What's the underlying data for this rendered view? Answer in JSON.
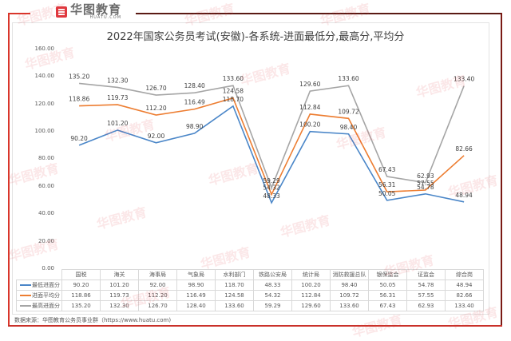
{
  "logo": {
    "cn": "华图教育",
    "en": "HUATU.COM"
  },
  "title": "2022年国家公务员考试(安徽)-各系统-进面最低分,最高分,平均分",
  "source": "数据来源：华图教育公务员事业群（https://www.huatu.com)",
  "watermark": "华图教育",
  "colors": {
    "min": "#4a86c8",
    "avg": "#ed7d31",
    "max": "#a5a5a5",
    "frame": "#d9362b"
  },
  "chart_data": {
    "type": "line",
    "title": "2022年国家公务员考试(安徽)-各系统-进面最低分,最高分,平均分",
    "xlabel": "",
    "ylabel": "",
    "ylim": [
      0,
      160
    ],
    "yticks": [
      "0.00",
      "20.00",
      "40.00",
      "60.00",
      "80.00",
      "100.00",
      "120.00",
      "140.00",
      "160.00"
    ],
    "grid": false,
    "legend_position": "data-table",
    "categories": [
      "国税",
      "海关",
      "海事局",
      "气象局",
      "水利部门",
      "铁路公安局",
      "统计局",
      "消防救援总队",
      "银保监会",
      "证监会",
      "综合岗"
    ],
    "series": [
      {
        "name": "最低进面分",
        "color": "#4a86c8",
        "values": [
          90.2,
          101.2,
          92.0,
          98.9,
          118.7,
          48.33,
          100.2,
          98.4,
          50.05,
          54.78,
          48.94
        ]
      },
      {
        "name": "进面平均分",
        "color": "#ed7d31",
        "values": [
          118.86,
          119.73,
          112.2,
          116.49,
          124.58,
          54.32,
          112.84,
          109.72,
          56.31,
          57.55,
          82.66
        ]
      },
      {
        "name": "最高进面分",
        "color": "#a5a5a5",
        "values": [
          135.2,
          132.3,
          126.7,
          128.4,
          133.6,
          59.29,
          129.6,
          133.6,
          67.43,
          62.93,
          133.4
        ]
      }
    ]
  },
  "table": {
    "rows": [
      {
        "label": "最低进面分",
        "cells": [
          "90.20",
          "101.20",
          "92.00",
          "98.90",
          "118.70",
          "48.33",
          "100.20",
          "98.40",
          "50.05",
          "54.78",
          "48.94"
        ]
      },
      {
        "label": "进面平均分",
        "cells": [
          "118.86",
          "119.73",
          "112.20",
          "116.49",
          "124.58",
          "54.32",
          "112.84",
          "109.72",
          "56.31",
          "57.55",
          "82.66"
        ]
      },
      {
        "label": "最高进面分",
        "cells": [
          "135.20",
          "132.30",
          "126.70",
          "128.40",
          "133.60",
          "59.29",
          "129.60",
          "133.60",
          "67.43",
          "62.93",
          "133.40"
        ]
      }
    ]
  }
}
